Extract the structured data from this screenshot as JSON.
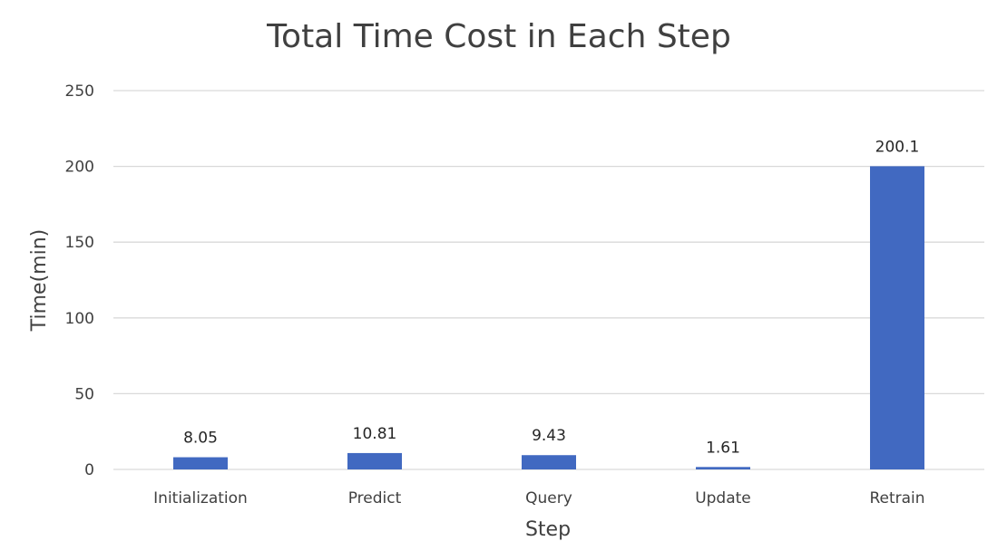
{
  "colors": {
    "bar": "#4169C1",
    "grid": "#d9d9d9",
    "text": "#404040"
  },
  "chart_data": {
    "type": "bar",
    "title": "Total Time Cost in Each Step",
    "xlabel": "Step",
    "ylabel": "Time(min)",
    "categories": [
      "Initialization",
      "Predict",
      "Query",
      "Update",
      "Retrain"
    ],
    "values": [
      8.05,
      10.81,
      9.43,
      1.61,
      200.1
    ],
    "data_labels": [
      "8.05",
      "10.81",
      "9.43",
      "1.61",
      "200.1"
    ],
    "ylim": [
      0,
      250
    ],
    "yticks": [
      "0",
      "50",
      "100",
      "150",
      "200",
      "250"
    ],
    "grid": true,
    "legend": "none"
  }
}
